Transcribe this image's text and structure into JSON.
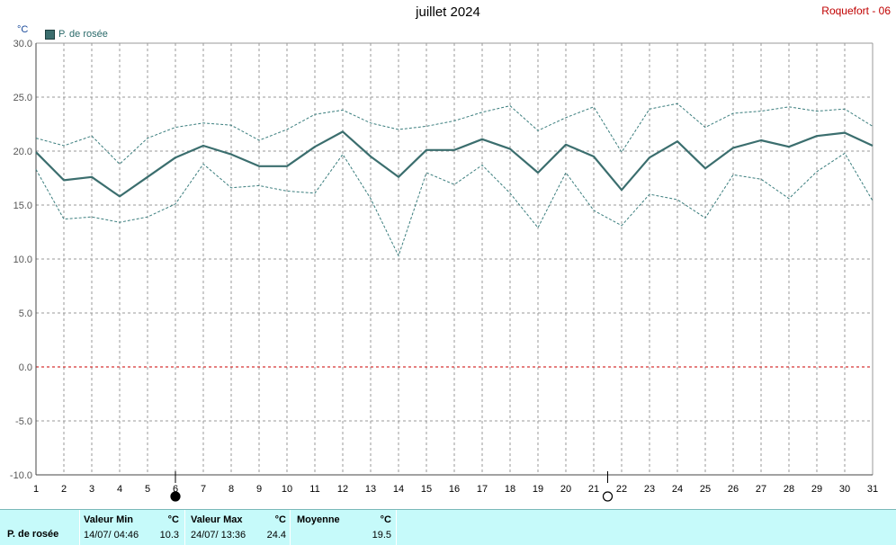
{
  "header": {
    "title": "juillet 2024",
    "station": "Roquefort - 06",
    "unit": "°C"
  },
  "legend": {
    "label": "P. de rosée",
    "color": "#3b6e6e"
  },
  "chart_data": {
    "type": "line",
    "title": "juillet 2024",
    "ylabel": "°C",
    "ylim": [
      -10,
      30
    ],
    "xlim": [
      1,
      31
    ],
    "grid": true,
    "legend_position": "top-left",
    "x": [
      1,
      2,
      3,
      4,
      5,
      6,
      7,
      8,
      9,
      10,
      11,
      12,
      13,
      14,
      15,
      16,
      17,
      18,
      19,
      20,
      21,
      22,
      23,
      24,
      25,
      26,
      27,
      28,
      29,
      30,
      31
    ],
    "x_tick_labels": [
      "1",
      "2",
      "3",
      "4",
      "5",
      "6",
      "7",
      "8",
      "9",
      "10",
      "11",
      "12",
      "13",
      "14",
      "15",
      "16",
      "17",
      "18",
      "19",
      "20",
      "21",
      "22",
      "23",
      "24",
      "25",
      "26",
      "27",
      "28",
      "29",
      "30",
      "31"
    ],
    "y_tick_labels": [
      "30.0",
      "25.0",
      "20.0",
      "15.0",
      "10.0",
      "5.0",
      "0.0",
      "-5.0",
      "-10.0"
    ],
    "y_ticks": [
      30,
      25,
      20,
      15,
      10,
      5,
      0,
      -5,
      -10
    ],
    "series": [
      {
        "name": "P. de rosée",
        "style": "solid",
        "values": [
          19.9,
          17.3,
          17.6,
          15.8,
          17.6,
          19.4,
          20.5,
          19.7,
          18.6,
          18.6,
          20.4,
          21.8,
          19.5,
          17.6,
          20.1,
          20.1,
          21.1,
          20.2,
          18.0,
          20.6,
          19.5,
          16.4,
          19.4,
          20.9,
          18.4,
          20.3,
          21.0,
          20.4,
          21.4,
          21.7,
          20.5
        ]
      },
      {
        "style": "dashed",
        "values": [
          21.2,
          20.5,
          21.4,
          18.8,
          21.2,
          22.2,
          22.6,
          22.4,
          21.0,
          22.0,
          23.4,
          23.8,
          22.6,
          22.0,
          22.3,
          22.8,
          23.6,
          24.2,
          21.9,
          23.1,
          24.1,
          19.9,
          23.9,
          24.4,
          22.2,
          23.5,
          23.7,
          24.1,
          23.7,
          23.9,
          22.3
        ]
      },
      {
        "style": "dashed",
        "values": [
          18.3,
          13.7,
          13.9,
          13.4,
          13.9,
          15.1,
          18.8,
          16.6,
          16.8,
          16.3,
          16.1,
          19.7,
          15.6,
          10.3,
          18.0,
          16.9,
          18.7,
          16.1,
          12.9,
          18.0,
          14.5,
          13.1,
          16.0,
          15.5,
          13.8,
          17.8,
          17.4,
          15.6,
          18.1,
          19.8,
          15.4
        ]
      }
    ],
    "zero_line": {
      "value": 0.0,
      "color": "#cc0000",
      "style": "dashed"
    },
    "moon_phases": [
      {
        "day": 6,
        "phase": "new-moon"
      },
      {
        "day": 21.5,
        "phase": "full-moon"
      }
    ]
  },
  "stats": {
    "series_label": "P. de rosée",
    "min_header": "Valeur Min",
    "min_unit": "°C",
    "min_date": "14/07/  04:46",
    "min_value": "10.3",
    "max_header": "Valeur Max",
    "max_unit": "°C",
    "max_date": "24/07/  13:36",
    "max_value": "24.4",
    "avg_header": "Moyenne",
    "avg_unit": "°C",
    "avg_value": "19.5"
  },
  "colors": {
    "main_line": "#3b6e6e",
    "range_lines": "#3b7e7e",
    "grid": "#9a9a9a",
    "zero_line": "#cc0000",
    "footer_bg": "#c6fafa"
  }
}
